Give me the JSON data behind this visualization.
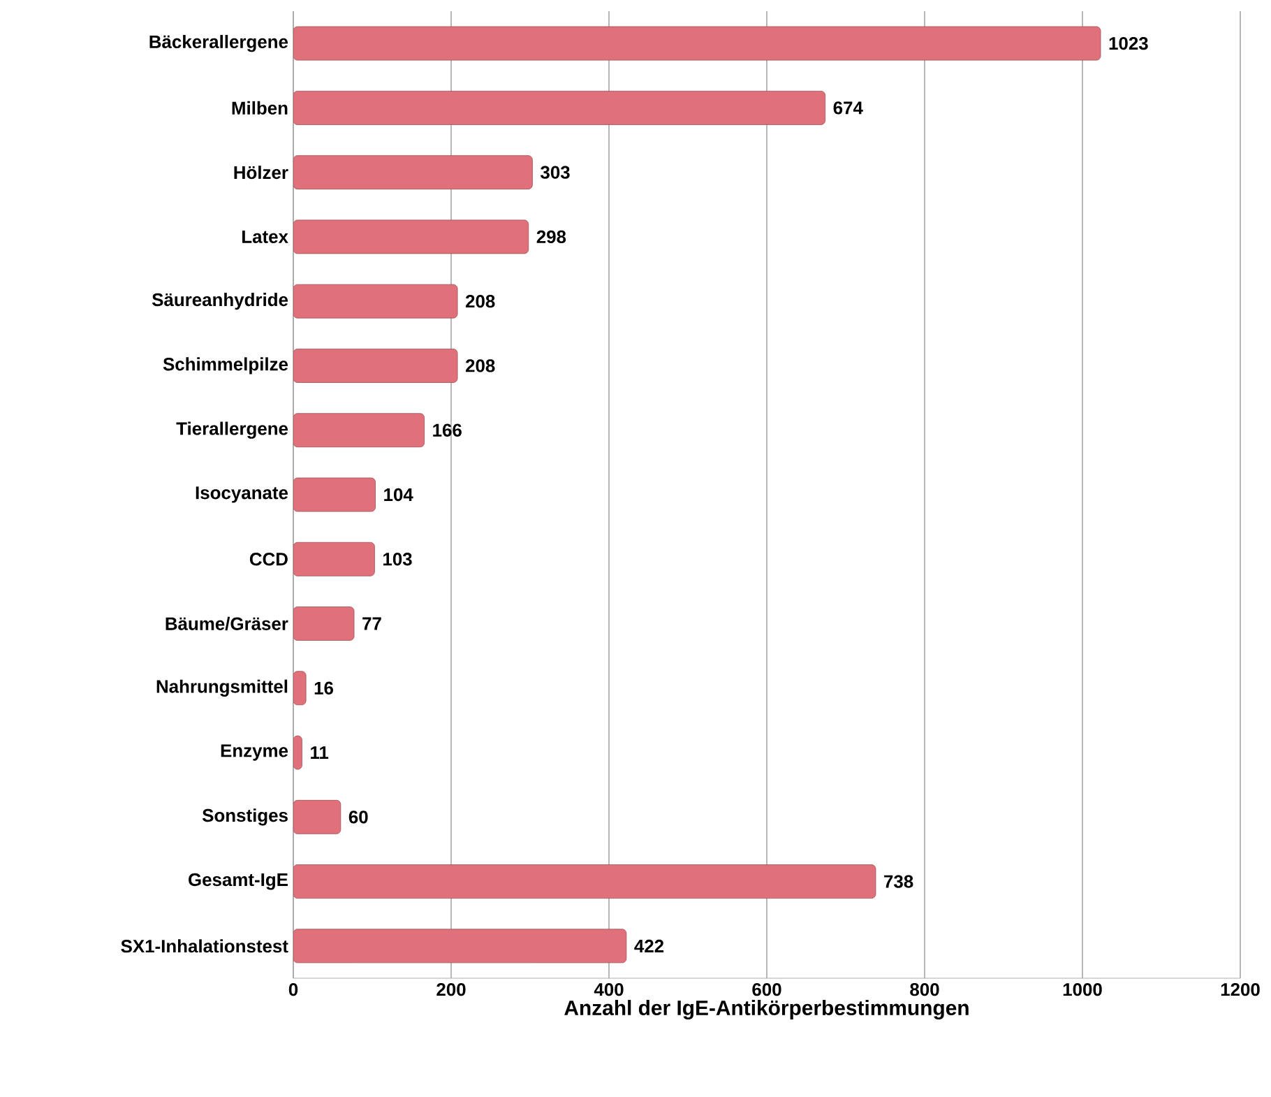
{
  "chart_data": {
    "type": "bar",
    "orientation": "horizontal",
    "categories": [
      "Bäckerallergene",
      "Milben",
      "Hölzer",
      "Latex",
      "Säureanhydride",
      "Schimmelpilze",
      "Tierallergene",
      "Isocyanate",
      "CCD",
      "Bäume/Gräser",
      "Nahrungsmittel",
      "Enzyme",
      "Sonstiges",
      "Gesamt-IgE",
      "SX1-Inhalationstest"
    ],
    "values": [
      1023,
      674,
      303,
      298,
      208,
      208,
      166,
      104,
      103,
      77,
      16,
      11,
      60,
      738,
      422
    ],
    "color": "#e0707a",
    "xlim": [
      0,
      1200
    ],
    "xticks": [
      0,
      200,
      400,
      600,
      800,
      1000,
      1200
    ],
    "xlabel": "Anzahl der IgE-Antikörperbestimmungen",
    "grid": "x",
    "data_labels": true
  }
}
